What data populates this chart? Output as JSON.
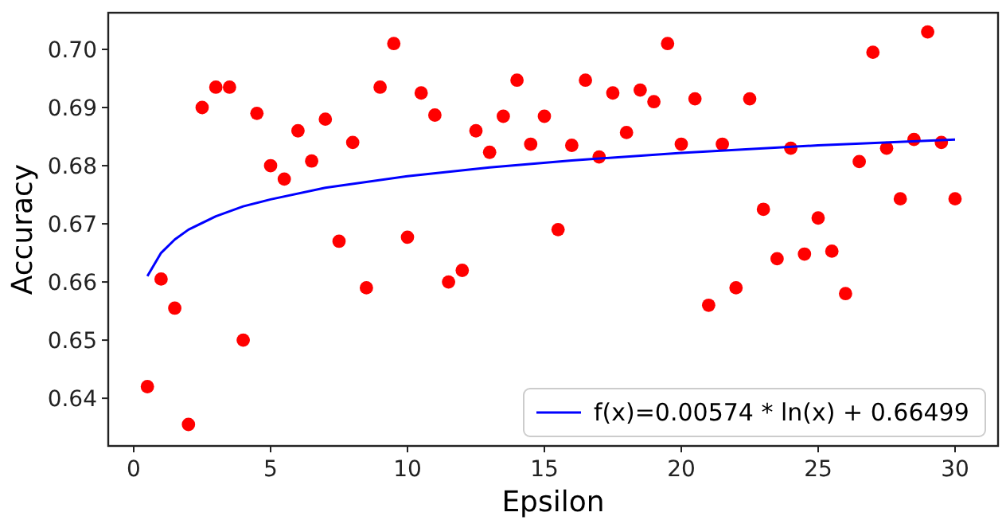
{
  "chart_data": {
    "type": "scatter",
    "xlabel": "Epsilon",
    "ylabel": "Accuracy",
    "xlim": [
      -0.93,
      31.57
    ],
    "ylim": [
      0.6318,
      0.7063
    ],
    "xticks": [
      0,
      5,
      10,
      15,
      20,
      25,
      30
    ],
    "yticks": [
      {
        "value": 0.64,
        "label": "0.64"
      },
      {
        "value": 0.65,
        "label": "0.65"
      },
      {
        "value": 0.66,
        "label": "0.66"
      },
      {
        "value": 0.67,
        "label": "0.67"
      },
      {
        "value": 0.68,
        "label": "0.68"
      },
      {
        "value": 0.69,
        "label": "0.69"
      },
      {
        "value": 0.7,
        "label": "0.70"
      }
    ],
    "legend": "bottom right",
    "grid": false,
    "series": [
      {
        "color": "#ff0000",
        "marker": "circle",
        "x": [
          0.5,
          1,
          1.5,
          2,
          2.5,
          3,
          3.5,
          4,
          4.5,
          5,
          5.5,
          6,
          6.5,
          7,
          7.5,
          8,
          8.5,
          9,
          9.5,
          10,
          10.5,
          11,
          11.5,
          12,
          12.5,
          13,
          13.5,
          14,
          14.5,
          15,
          15.5,
          16,
          16.5,
          17,
          17.5,
          18,
          18.5,
          19,
          19.5,
          20,
          20.5,
          21,
          21.5,
          22,
          22.5,
          23,
          23.5,
          24,
          24.5,
          25,
          25.5,
          26,
          26.5,
          27,
          27.5,
          28,
          28.5,
          29,
          29.5,
          30
        ],
        "values": [
          0.642,
          0.6605,
          0.6555,
          0.6355,
          0.69,
          0.6935,
          0.6935,
          0.65,
          0.689,
          0.68,
          0.6777,
          0.686,
          0.6808,
          0.688,
          0.667,
          0.684,
          0.659,
          0.6935,
          0.701,
          0.6677,
          0.6925,
          0.6887,
          0.66,
          0.662,
          0.686,
          0.6823,
          0.6885,
          0.6947,
          0.6837,
          0.6885,
          0.669,
          0.6835,
          0.6947,
          0.6815,
          0.6925,
          0.6857,
          0.693,
          0.691,
          0.701,
          0.6837,
          0.6915,
          0.656,
          0.6837,
          0.659,
          0.6915,
          0.6725,
          0.664,
          0.683,
          0.6648,
          0.671,
          0.6653,
          0.658,
          0.6807,
          0.6995,
          0.683,
          0.6743,
          0.6845,
          0.703,
          0.684,
          0.6743
        ]
      },
      {
        "type": "line",
        "name": "f(x)=0.00574 * ln(x) + 0.66499",
        "color": "#0000ff",
        "line_style": "solid",
        "x": [
          0.5,
          1,
          1.5,
          2,
          3,
          4,
          5,
          7,
          10,
          13,
          16,
          20,
          25,
          30
        ],
        "values": [
          0.661,
          0.665,
          0.6673,
          0.669,
          0.6713,
          0.673,
          0.6742,
          0.6762,
          0.6782,
          0.6797,
          0.6809,
          0.6822,
          0.6835,
          0.6845
        ]
      }
    ]
  }
}
